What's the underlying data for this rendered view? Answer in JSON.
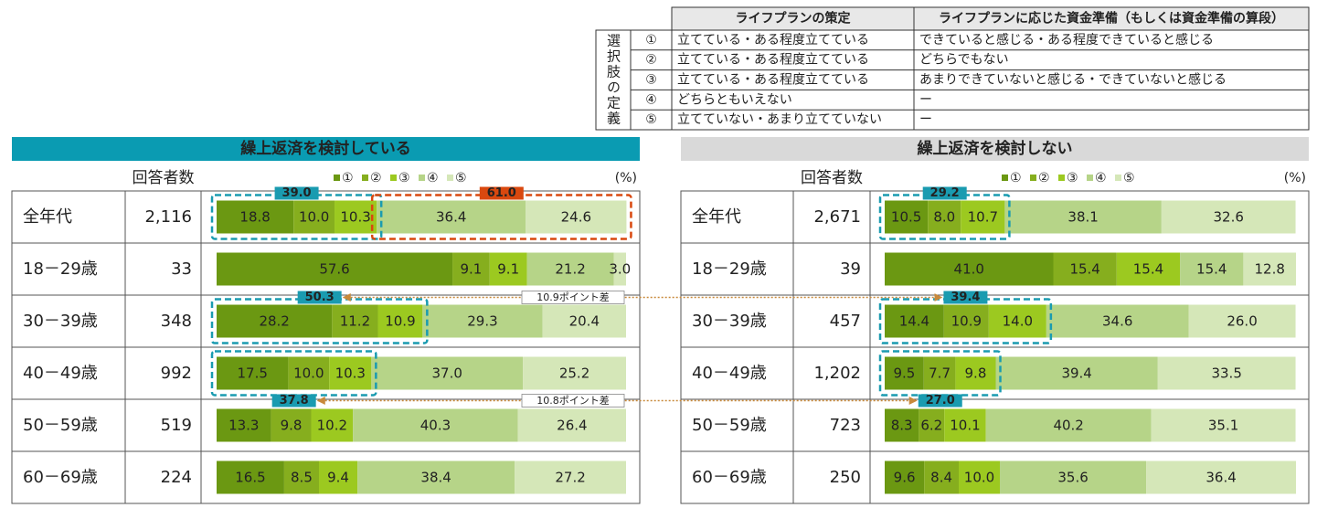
{
  "definition_table": {
    "side_label": "選択肢の定義",
    "header": [
      "ライフプランの策定",
      "ライフプランに応じた資金準備（もしくは資金準備の算段）"
    ],
    "rows": [
      [
        "①",
        "立てている・ある程度立てている",
        "できていると感じる・ある程度できていると感じる"
      ],
      [
        "②",
        "立てている・ある程度立てている",
        "どちらでもない"
      ],
      [
        "③",
        "立てている・ある程度立てている",
        "あまりできていないと感じる・できていないと感じる"
      ],
      [
        "④",
        "どちらともいえない",
        "ー"
      ],
      [
        "⑤",
        "立てていない・あまり立てていない",
        "ー"
      ]
    ]
  },
  "chart_data": [
    {
      "type": "stacked-bar",
      "title": "繰上返済を検討している",
      "title_background": "#0a9bb2",
      "title_color": "#ffffff",
      "count_header": "回答者数",
      "unit": "(%)",
      "categories": [
        "全年代",
        "18－29歳",
        "30－39歳",
        "40－49歳",
        "50－59歳",
        "60－69歳"
      ],
      "counts": [
        2116,
        33,
        348,
        992,
        519,
        224
      ],
      "count_labels": [
        "2,116",
        "33",
        "348",
        "992",
        "519",
        "224"
      ],
      "series": [
        {
          "name": "①",
          "color": "#6b9812",
          "values": [
            18.8,
            57.6,
            28.2,
            17.5,
            13.3,
            16.5
          ],
          "value_labels": [
            "18.8",
            "57.6",
            "28.2",
            "17.5",
            "13.3",
            "16.5"
          ]
        },
        {
          "name": "②",
          "color": "#86ae1e",
          "values": [
            10.0,
            9.1,
            11.2,
            10.0,
            9.8,
            8.5
          ],
          "value_labels": [
            "10.0",
            "9.1",
            "11.2",
            "10.0",
            "9.8",
            "8.5"
          ]
        },
        {
          "name": "③",
          "color": "#9cc920",
          "values": [
            10.3,
            9.1,
            10.9,
            10.3,
            10.2,
            9.4
          ],
          "value_labels": [
            "10.3",
            "9.1",
            "10.9",
            "10.3",
            "10.2",
            "9.4"
          ]
        },
        {
          "name": "④",
          "color": "#b6d488",
          "values": [
            36.4,
            21.2,
            29.3,
            37.0,
            40.3,
            38.4
          ],
          "value_labels": [
            "36.4",
            "21.2",
            "29.3",
            "37.0",
            "40.3",
            "38.4"
          ]
        },
        {
          "name": "⑤",
          "color": "#d5e7b8",
          "values": [
            24.6,
            3.0,
            20.4,
            25.2,
            26.4,
            27.2
          ],
          "value_labels": [
            "24.6",
            "3.0",
            "20.4",
            "25.2",
            "26.4",
            "27.2"
          ]
        }
      ],
      "highlights": [
        {
          "row": 0,
          "series": [
            0,
            2
          ],
          "value": 39,
          "label": "39.0",
          "color": "#1a9bb0",
          "label_position": "top"
        },
        {
          "row": 0,
          "series": [
            3,
            4
          ],
          "value": 61,
          "label": "61.0",
          "color": "#d9480f",
          "label_position": "top"
        },
        {
          "row": 2,
          "series": [
            0,
            2
          ],
          "value": 50.3,
          "label": "50.3",
          "color": "#1a9bb0",
          "label_position": "top"
        },
        {
          "row": 3,
          "series": [
            0,
            2
          ],
          "value": 37.8,
          "label": "37.8",
          "color": "#1a9bb0",
          "label_position": "bottom"
        }
      ]
    },
    {
      "type": "stacked-bar",
      "title": "繰上返済を検討しない",
      "title_background": "#d9d9d9",
      "title_color": "#222222",
      "count_header": "回答者数",
      "unit": "(%)",
      "categories": [
        "全年代",
        "18－29歳",
        "30－39歳",
        "40－49歳",
        "50－59歳",
        "60－69歳"
      ],
      "counts": [
        2671,
        39,
        457,
        1202,
        723,
        250
      ],
      "count_labels": [
        "2,671",
        "39",
        "457",
        "1,202",
        "723",
        "250"
      ],
      "series": [
        {
          "name": "①",
          "color": "#6b9812",
          "values": [
            10.5,
            41.0,
            14.4,
            9.5,
            8.3,
            9.6
          ],
          "value_labels": [
            "10.5",
            "41.0",
            "14.4",
            "9.5",
            "8.3",
            "9.6"
          ]
        },
        {
          "name": "②",
          "color": "#86ae1e",
          "values": [
            8.0,
            15.4,
            10.9,
            7.7,
            6.2,
            8.4
          ],
          "value_labels": [
            "8.0",
            "15.4",
            "10.9",
            "7.7",
            "6.2",
            "8.4"
          ]
        },
        {
          "name": "③",
          "color": "#9cc920",
          "values": [
            10.7,
            15.4,
            14.0,
            9.8,
            10.1,
            10.0
          ],
          "value_labels": [
            "10.7",
            "15.4",
            "14.0",
            "9.8",
            "10.1",
            "10.0"
          ]
        },
        {
          "name": "④",
          "color": "#b6d488",
          "values": [
            38.1,
            15.4,
            34.6,
            39.4,
            40.2,
            35.6
          ],
          "value_labels": [
            "38.1",
            "15.4",
            "34.6",
            "39.4",
            "40.2",
            "35.6"
          ]
        },
        {
          "name": "⑤",
          "color": "#d5e7b8",
          "values": [
            32.6,
            12.8,
            26.0,
            33.5,
            35.1,
            36.4
          ],
          "value_labels": [
            "32.6",
            "12.8",
            "26.0",
            "33.5",
            "35.1",
            "36.4"
          ]
        }
      ],
      "highlights": [
        {
          "row": 0,
          "series": [
            0,
            2
          ],
          "value": 29.2,
          "label": "29.2",
          "color": "#1a9bb0",
          "label_position": "top"
        },
        {
          "row": 2,
          "series": [
            0,
            2
          ],
          "value": 39.4,
          "label": "39.4",
          "color": "#1a9bb0",
          "label_position": "top"
        },
        {
          "row": 3,
          "series": [
            0,
            2
          ],
          "value": 27,
          "label": "27.0",
          "color": "#1a9bb0",
          "label_position": "bottom"
        }
      ]
    }
  ],
  "comparisons": [
    {
      "text": "10.9ポイント差",
      "row": 2,
      "color": "#c8893a"
    },
    {
      "text": "10.8ポイント差",
      "row": 3,
      "color": "#c8893a"
    }
  ]
}
